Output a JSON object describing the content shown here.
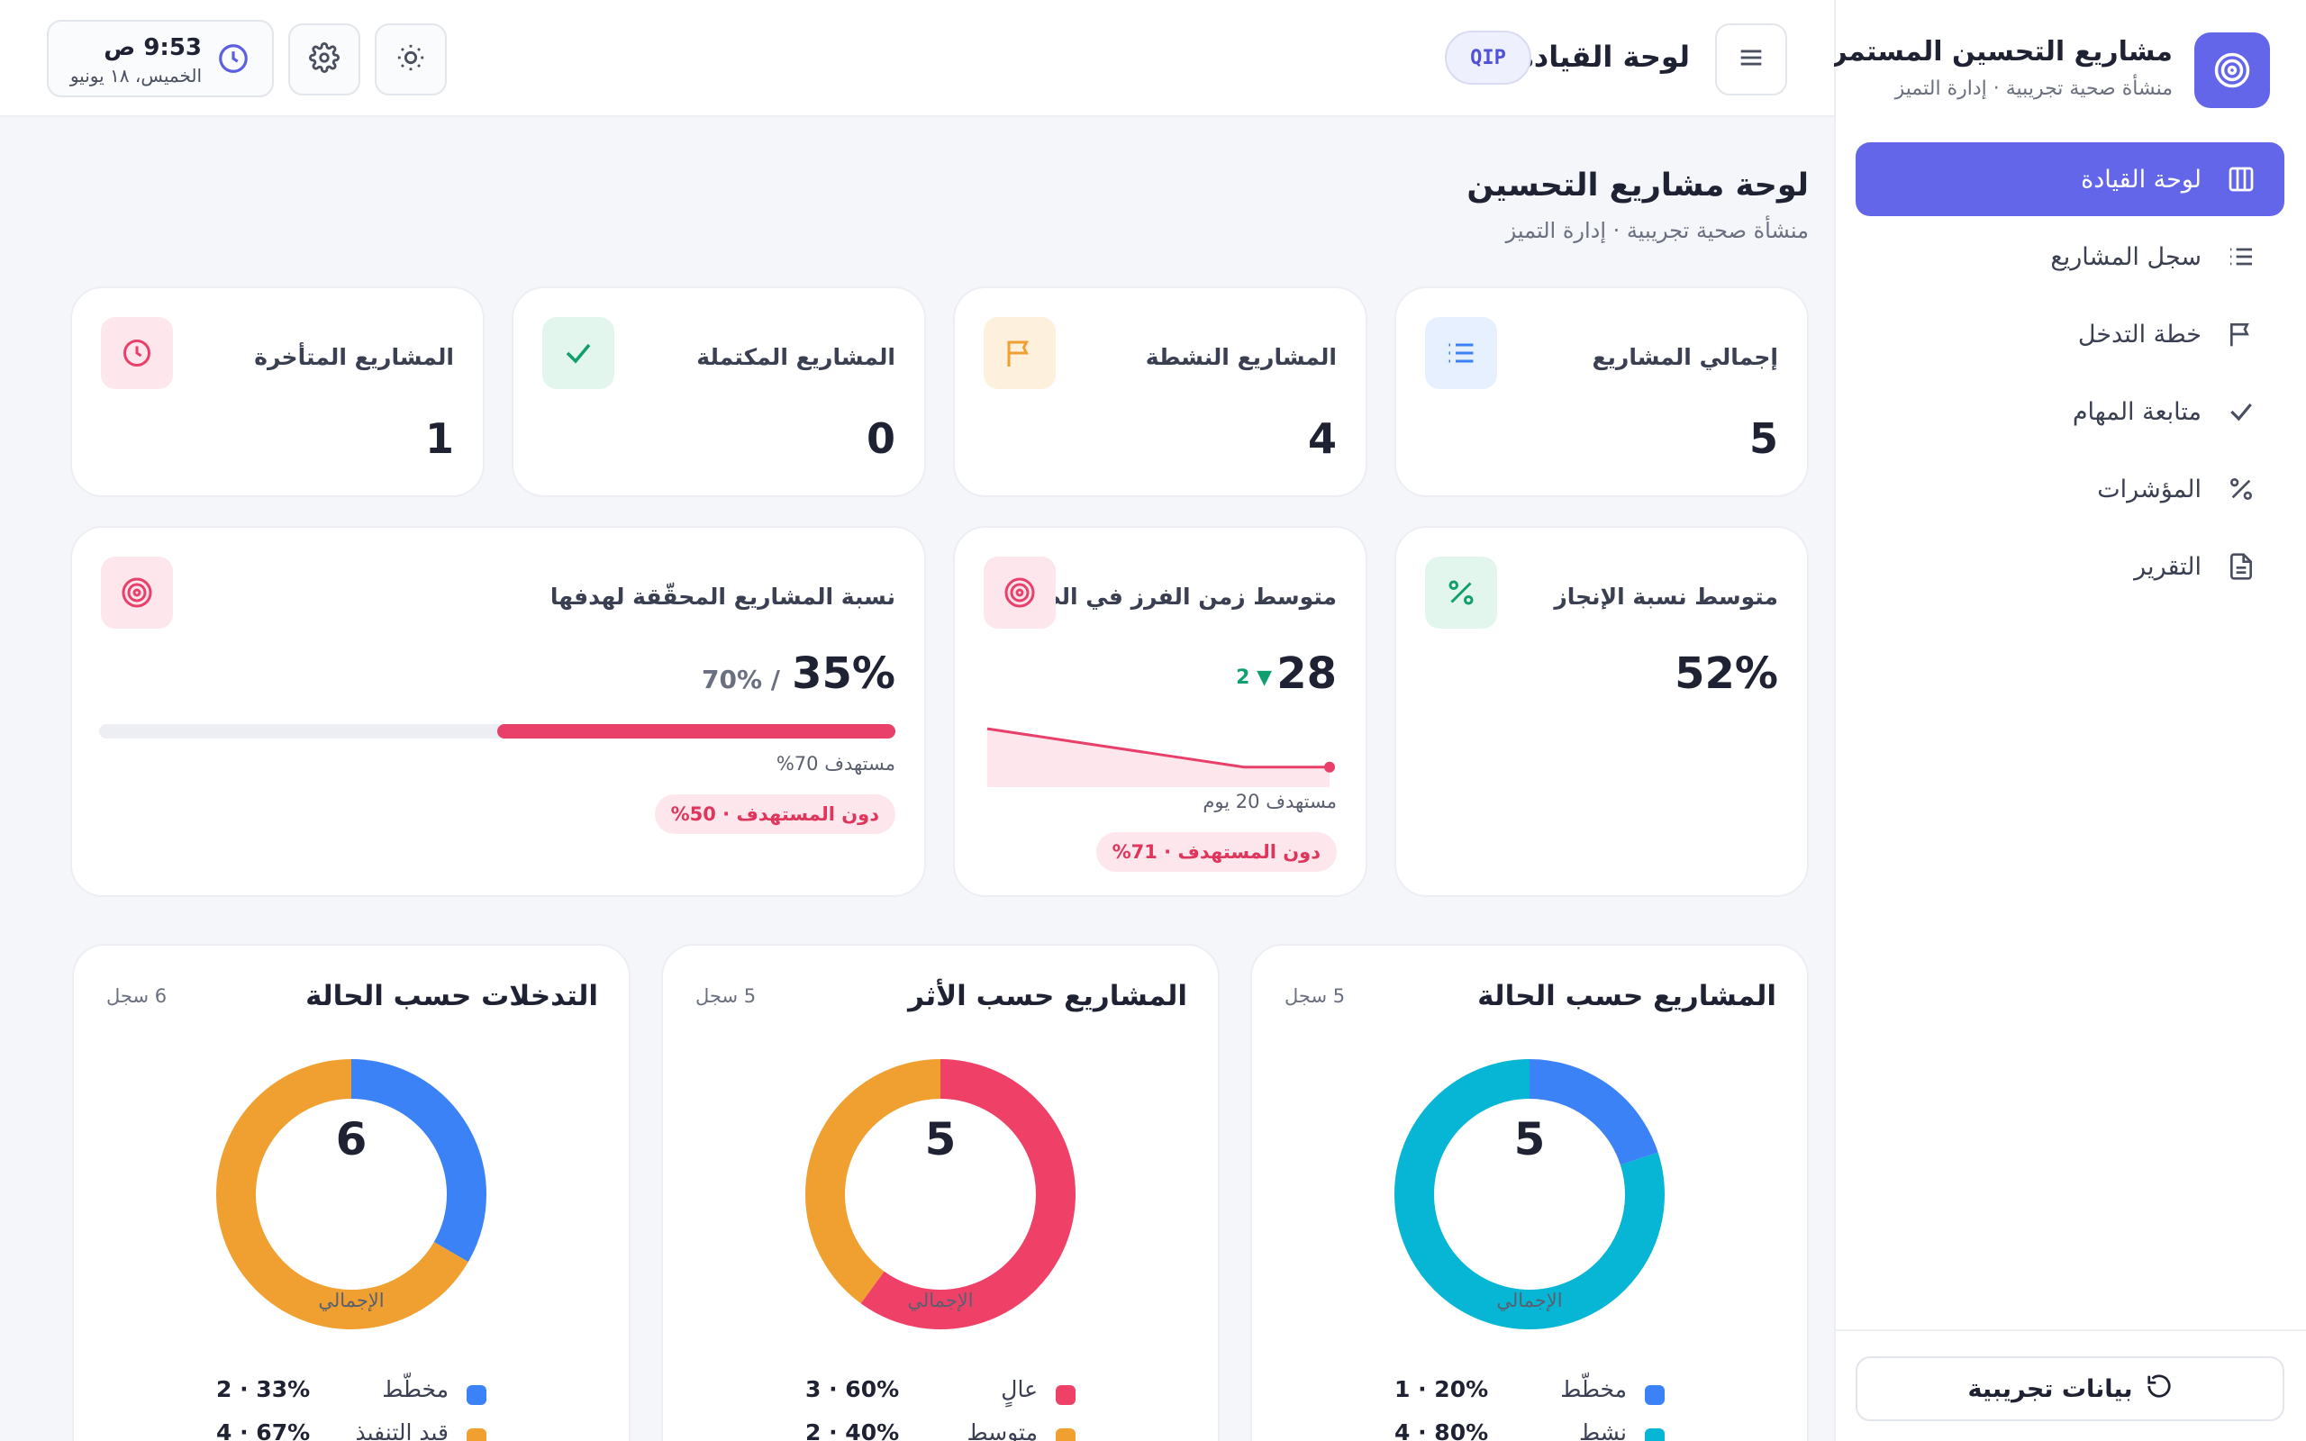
{
  "sidebar": {
    "title": "مشاريع التحسين المستمر",
    "subtitle": "منشأة صحية تجريبية · إدارة التميز",
    "items": [
      {
        "label": "لوحة القيادة",
        "icon": "dashboard-icon",
        "active": true
      },
      {
        "label": "سجل المشاريع",
        "icon": "list-icon"
      },
      {
        "label": "خطة التدخل",
        "icon": "flag-icon"
      },
      {
        "label": "متابعة المهام",
        "icon": "check-icon"
      },
      {
        "label": "المؤشرات",
        "icon": "percent-icon"
      },
      {
        "label": "التقرير",
        "icon": "document-icon"
      }
    ],
    "demo_button": "بيانات تجريبية"
  },
  "topbar": {
    "title": "لوحة القيادة",
    "badge": "QIP",
    "time": "9:53 ص",
    "date": "الخميس، ١٨ يونيو"
  },
  "page": {
    "title": "لوحة مشاريع التحسين",
    "subtitle": "منشأة صحية تجريبية · إدارة التميز"
  },
  "stats": [
    {
      "label": "إجمالي المشاريع",
      "value": "5",
      "icon": "list-icon",
      "color": "#3b82f6"
    },
    {
      "label": "المشاريع النشطة",
      "value": "4",
      "icon": "flag-icon",
      "color": "#f0a030"
    },
    {
      "label": "المشاريع المكتملة",
      "value": "0",
      "icon": "check-icon",
      "color": "#10a070"
    },
    {
      "label": "المشاريع المتأخرة",
      "value": "1",
      "icon": "clock-icon",
      "color": "#e8406a"
    }
  ],
  "kpis": {
    "completion": {
      "label": "متوسط نسبة الإنجاز",
      "value": "52%"
    },
    "triage": {
      "label": "متوسط زمن الفرز في الطوارئ",
      "value": "28",
      "delta": "2",
      "target_note": "مستهدف 20 يوم",
      "status": "دون المستهدف · 71%",
      "trend": [
        34,
        32,
        30,
        28,
        28
      ]
    },
    "achieved": {
      "label": "نسبة المشاريع المحقّقة لهدفها",
      "value": "35%",
      "target": "70% /",
      "progress": 0.5,
      "target_note": "مستهدف 70%",
      "status": "دون المستهدف · 50%"
    }
  },
  "charts": {
    "by_status": {
      "title": "المشاريع حسب الحالة",
      "count": "5 سجل",
      "total": "5",
      "caption": "الإجمالي",
      "segments": [
        {
          "label": "مخطّط",
          "value": 1,
          "text": "1 · 20%",
          "color": "#3b82f6"
        },
        {
          "label": "نشط",
          "value": 4,
          "text": "4 · 80%",
          "color": "#06b6d4"
        }
      ]
    },
    "by_impact": {
      "title": "المشاريع حسب الأثر",
      "count": "5 سجل",
      "total": "5",
      "caption": "الإجمالي",
      "segments": [
        {
          "label": "عالٍ",
          "value": 3,
          "text": "3 · 60%",
          "color": "#ef4168"
        },
        {
          "label": "متوسط",
          "value": 2,
          "text": "2 · 40%",
          "color": "#f0a030"
        }
      ]
    },
    "interventions": {
      "title": "التدخلات حسب الحالة",
      "count": "6 سجل",
      "total": "6",
      "caption": "الإجمالي",
      "segments": [
        {
          "label": "مخطّط",
          "value": 2,
          "text": "2 · 33%",
          "color": "#3b82f6"
        },
        {
          "label": "قيد التنفيذ",
          "value": 4,
          "text": "4 · 67%",
          "color": "#f0a030"
        }
      ]
    }
  },
  "chart_data": [
    {
      "type": "pie",
      "title": "المشاريع حسب الحالة",
      "categories": [
        "مخطّط",
        "نشط"
      ],
      "values": [
        1,
        4
      ]
    },
    {
      "type": "pie",
      "title": "المشاريع حسب الأثر",
      "categories": [
        "عالٍ",
        "متوسط"
      ],
      "values": [
        3,
        2
      ]
    },
    {
      "type": "pie",
      "title": "التدخلات حسب الحالة",
      "categories": [
        "مخطّط",
        "قيد التنفيذ"
      ],
      "values": [
        2,
        4
      ]
    }
  ]
}
